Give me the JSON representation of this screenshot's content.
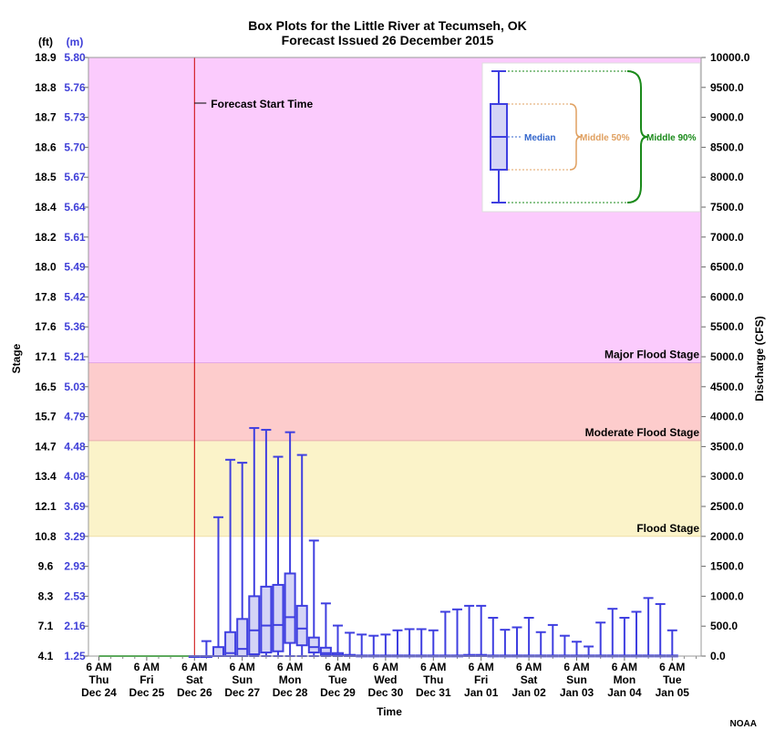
{
  "chart_data": {
    "type": "box",
    "title": "Box Plots for the Little River at Tecumseh, OK",
    "subtitle": "Forecast Issued 26 December 2015",
    "left_axis": {
      "label": "Stage",
      "unit_ft": "(ft)",
      "unit_m": "(m)",
      "ticks_ft": [
        "18.9",
        "18.8",
        "18.7",
        "18.6",
        "18.5",
        "18.4",
        "18.2",
        "18.0",
        "17.8",
        "17.6",
        "17.1",
        "16.5",
        "15.7",
        "14.7",
        "13.4",
        "12.1",
        "10.8",
        "9.6",
        "8.3",
        "7.1",
        "4.1"
      ],
      "ticks_m": [
        "5.80",
        "5.76",
        "5.73",
        "5.70",
        "5.67",
        "5.64",
        "5.61",
        "5.49",
        "5.42",
        "5.36",
        "5.21",
        "5.03",
        "4.79",
        "4.48",
        "4.08",
        "3.69",
        "3.29",
        "2.93",
        "2.53",
        "2.16",
        "1.25"
      ]
    },
    "right_axis": {
      "label": "Discharge (CFS)",
      "ticks": [
        "10000.0",
        "9500.0",
        "9000.0",
        "8500.0",
        "8000.0",
        "7500.0",
        "7000.0",
        "6500.0",
        "6000.0",
        "5500.0",
        "5000.0",
        "4500.0",
        "4000.0",
        "3500.0",
        "3000.0",
        "2500.0",
        "2000.0",
        "1500.0",
        "1000.0",
        "500.0",
        "0.0"
      ],
      "ylim": [
        0,
        10000
      ]
    },
    "x_axis": {
      "label": "Time",
      "ticks": [
        {
          "l1": "6 AM",
          "l2": "Thu",
          "l3": "Dec 24"
        },
        {
          "l1": "6 AM",
          "l2": "Fri",
          "l3": "Dec 25"
        },
        {
          "l1": "6 AM",
          "l2": "Sat",
          "l3": "Dec 26"
        },
        {
          "l1": "6 AM",
          "l2": "Sun",
          "l3": "Dec 27"
        },
        {
          "l1": "6 AM",
          "l2": "Mon",
          "l3": "Dec 28"
        },
        {
          "l1": "6 AM",
          "l2": "Tue",
          "l3": "Dec 29"
        },
        {
          "l1": "6 AM",
          "l2": "Wed",
          "l3": "Dec 30"
        },
        {
          "l1": "6 AM",
          "l2": "Thu",
          "l3": "Dec 31"
        },
        {
          "l1": "6 AM",
          "l2": "Fri",
          "l3": "Jan 01"
        },
        {
          "l1": "6 AM",
          "l2": "Sat",
          "l3": "Jan 02"
        },
        {
          "l1": "6 AM",
          "l2": "Sun",
          "l3": "Jan 03"
        },
        {
          "l1": "6 AM",
          "l2": "Mon",
          "l3": "Jan 04"
        },
        {
          "l1": "6 AM",
          "l2": "Tue",
          "l3": "Jan 05"
        }
      ]
    },
    "flood_stages": [
      {
        "name": "Flood Stage",
        "discharge": 2000,
        "color": "#fbf3c9",
        "line": "#f0dfa8"
      },
      {
        "name": "Moderate Flood Stage",
        "discharge": 3600,
        "color": "#fdcccc",
        "line": "#e8b0b0"
      },
      {
        "name": "Major Flood Stage",
        "discharge": 4900,
        "color": "#fbcbfd",
        "line": "#e3a8e6"
      }
    ],
    "forecast_start": {
      "label": "Forecast Start Time",
      "day": 2.0
    },
    "observed": {
      "color": "#22bb22",
      "day_range": [
        0,
        2.0
      ],
      "value": 0
    },
    "boxes": [
      {
        "day": 2.0,
        "p5": 0,
        "p25": 0,
        "median": 0,
        "p75": 0,
        "p95": 0
      },
      {
        "day": 2.25,
        "p5": 0,
        "p25": 0,
        "median": 0,
        "p75": 0,
        "p95": 250
      },
      {
        "day": 2.5,
        "p5": 0,
        "p25": 0,
        "median": 0,
        "p75": 150,
        "p95": 2320
      },
      {
        "day": 2.75,
        "p5": 0,
        "p25": 0,
        "median": 50,
        "p75": 400,
        "p95": 3280
      },
      {
        "day": 3.0,
        "p5": 0,
        "p25": 0,
        "median": 120,
        "p75": 620,
        "p95": 3230
      },
      {
        "day": 3.25,
        "p5": 0,
        "p25": 30,
        "median": 430,
        "p75": 1000,
        "p95": 3810
      },
      {
        "day": 3.5,
        "p5": 0,
        "p25": 60,
        "median": 510,
        "p75": 1160,
        "p95": 3780
      },
      {
        "day": 3.75,
        "p5": 0,
        "p25": 80,
        "median": 520,
        "p75": 1190,
        "p95": 3330
      },
      {
        "day": 4.0,
        "p5": 0,
        "p25": 220,
        "median": 650,
        "p75": 1380,
        "p95": 3740
      },
      {
        "day": 4.25,
        "p5": 0,
        "p25": 180,
        "median": 460,
        "p75": 840,
        "p95": 3360
      },
      {
        "day": 4.5,
        "p5": 0,
        "p25": 60,
        "median": 150,
        "p75": 310,
        "p95": 1930
      },
      {
        "day": 4.75,
        "p5": 0,
        "p25": 20,
        "median": 50,
        "p75": 140,
        "p95": 880
      },
      {
        "day": 5.0,
        "p5": 0,
        "p25": 10,
        "median": 20,
        "p75": 50,
        "p95": 510
      },
      {
        "day": 5.25,
        "p5": 0,
        "p25": 0,
        "median": 10,
        "p75": 20,
        "p95": 390
      },
      {
        "day": 5.5,
        "p5": 0,
        "p25": 0,
        "median": 5,
        "p75": 10,
        "p95": 360
      },
      {
        "day": 5.75,
        "p5": 0,
        "p25": 0,
        "median": 0,
        "p75": 10,
        "p95": 340
      },
      {
        "day": 6.0,
        "p5": 0,
        "p25": 0,
        "median": 0,
        "p75": 10,
        "p95": 360
      },
      {
        "day": 6.25,
        "p5": 0,
        "p25": 0,
        "median": 0,
        "p75": 10,
        "p95": 430
      },
      {
        "day": 6.5,
        "p5": 0,
        "p25": 0,
        "median": 0,
        "p75": 10,
        "p95": 450
      },
      {
        "day": 6.75,
        "p5": 0,
        "p25": 0,
        "median": 0,
        "p75": 10,
        "p95": 450
      },
      {
        "day": 7.0,
        "p5": 0,
        "p25": 0,
        "median": 0,
        "p75": 10,
        "p95": 430
      },
      {
        "day": 7.25,
        "p5": 0,
        "p25": 0,
        "median": 0,
        "p75": 10,
        "p95": 740
      },
      {
        "day": 7.5,
        "p5": 0,
        "p25": 0,
        "median": 0,
        "p75": 10,
        "p95": 780
      },
      {
        "day": 7.75,
        "p5": 0,
        "p25": 0,
        "median": 0,
        "p75": 20,
        "p95": 840
      },
      {
        "day": 8.0,
        "p5": 0,
        "p25": 0,
        "median": 0,
        "p75": 20,
        "p95": 840
      },
      {
        "day": 8.25,
        "p5": 0,
        "p25": 0,
        "median": 0,
        "p75": 10,
        "p95": 640
      },
      {
        "day": 8.5,
        "p5": 0,
        "p25": 0,
        "median": 0,
        "p75": 10,
        "p95": 440
      },
      {
        "day": 8.75,
        "p5": 0,
        "p25": 0,
        "median": 0,
        "p75": 10,
        "p95": 480
      },
      {
        "day": 9.0,
        "p5": 0,
        "p25": 0,
        "median": 0,
        "p75": 10,
        "p95": 640
      },
      {
        "day": 9.25,
        "p5": 0,
        "p25": 0,
        "median": 0,
        "p75": 10,
        "p95": 400
      },
      {
        "day": 9.5,
        "p5": 0,
        "p25": 0,
        "median": 0,
        "p75": 10,
        "p95": 520
      },
      {
        "day": 9.75,
        "p5": 0,
        "p25": 0,
        "median": 0,
        "p75": 10,
        "p95": 340
      },
      {
        "day": 10.0,
        "p5": 0,
        "p25": 0,
        "median": 0,
        "p75": 10,
        "p95": 240
      },
      {
        "day": 10.25,
        "p5": 0,
        "p25": 0,
        "median": 0,
        "p75": 10,
        "p95": 160
      },
      {
        "day": 10.5,
        "p5": 0,
        "p25": 0,
        "median": 0,
        "p75": 10,
        "p95": 560
      },
      {
        "day": 10.75,
        "p5": 0,
        "p25": 0,
        "median": 0,
        "p75": 10,
        "p95": 790
      },
      {
        "day": 11.0,
        "p5": 0,
        "p25": 0,
        "median": 0,
        "p75": 10,
        "p95": 640
      },
      {
        "day": 11.25,
        "p5": 0,
        "p25": 0,
        "median": 0,
        "p75": 10,
        "p95": 740
      },
      {
        "day": 11.5,
        "p5": 0,
        "p25": 0,
        "median": 0,
        "p75": 10,
        "p95": 970
      },
      {
        "day": 11.75,
        "p5": 0,
        "p25": 0,
        "median": 0,
        "p75": 10,
        "p95": 870
      },
      {
        "day": 12.0,
        "p5": 0,
        "p25": 0,
        "median": 0,
        "p75": 10,
        "p95": 430
      }
    ],
    "legend": {
      "median": "Median",
      "middle50": "Middle 50%",
      "middle90": "Middle 90%",
      "colors": {
        "median": "#3366cc",
        "middle50": "#e0a060",
        "middle90": "#1a8a1a"
      }
    },
    "colors": {
      "box_stroke": "#3f3fe0",
      "box_fill": "#d4d4f6",
      "forecast_line": "#cc0000"
    }
  },
  "footer": {
    "credit": "NOAA"
  }
}
